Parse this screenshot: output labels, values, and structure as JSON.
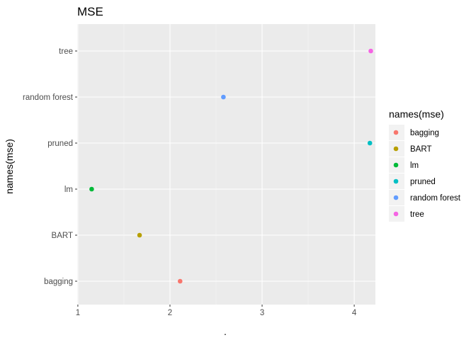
{
  "chart_data": {
    "type": "scatter",
    "title": "MSE",
    "xlabel": ".",
    "ylabel": "names(mse)",
    "xlim": [
      0.993,
      4.23
    ],
    "x_ticks": [
      1,
      2,
      3,
      4
    ],
    "x_tick_labels": [
      "1",
      "2",
      "3",
      "4"
    ],
    "categories": [
      "bagging",
      "BART",
      "lm",
      "pruned",
      "random forest",
      "tree"
    ],
    "points": [
      {
        "category": "bagging",
        "x": 2.11,
        "color": "#F8766D"
      },
      {
        "category": "BART",
        "x": 1.67,
        "color": "#B79F00"
      },
      {
        "category": "lm",
        "x": 1.15,
        "color": "#00BA38"
      },
      {
        "category": "pruned",
        "x": 4.17,
        "color": "#00BFC4"
      },
      {
        "category": "random forest",
        "x": 2.58,
        "color": "#619CFF"
      },
      {
        "category": "tree",
        "x": 4.18,
        "color": "#F564E3"
      }
    ],
    "legend": {
      "title": "names(mse)",
      "position": "right",
      "entries": [
        "bagging",
        "BART",
        "lm",
        "pruned",
        "random forest",
        "tree"
      ]
    },
    "grid": true,
    "panel_background": "#EBEBEB"
  }
}
